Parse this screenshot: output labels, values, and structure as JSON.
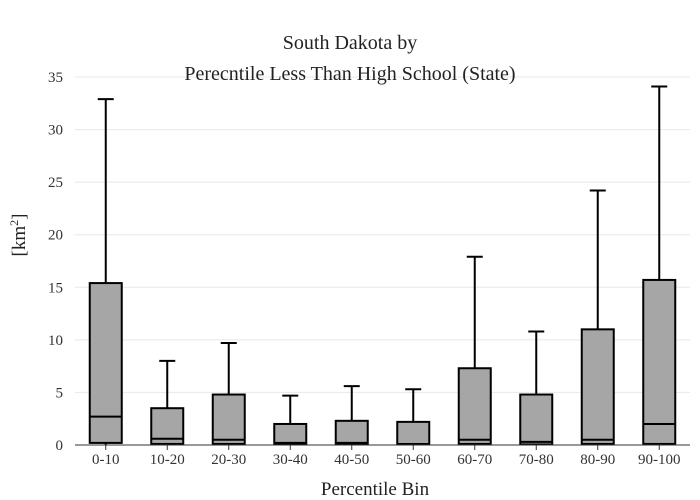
{
  "chart_data": {
    "type": "box",
    "title_line1": "South Dakota  by",
    "title_line2": "Perecntile Less Than High School (State)",
    "xlabel": "Percentile Bin",
    "ylabel_main": "[km",
    "ylabel_sup": "2",
    "ylabel_close": "]",
    "ylim": [
      0,
      35
    ],
    "yticks": [
      "0",
      "5",
      "10",
      "15",
      "20",
      "25",
      "30",
      "35"
    ],
    "grid": true,
    "box_color": "#a6a6a6",
    "line_color": "#000000",
    "categories": [
      "0-10",
      "10-20",
      "20-30",
      "30-40",
      "40-50",
      "50-60",
      "60-70",
      "70-80",
      "80-90",
      "90-100"
    ],
    "boxes": [
      {
        "min": 0.0,
        "q1": 0.2,
        "median": 2.7,
        "q3": 15.4,
        "max": 32.9
      },
      {
        "min": 0.0,
        "q1": 0.1,
        "median": 0.6,
        "q3": 3.5,
        "max": 8.0
      },
      {
        "min": 0.0,
        "q1": 0.1,
        "median": 0.5,
        "q3": 4.8,
        "max": 9.7
      },
      {
        "min": 0.0,
        "q1": 0.05,
        "median": 0.2,
        "q3": 2.0,
        "max": 4.7
      },
      {
        "min": 0.0,
        "q1": 0.05,
        "median": 0.2,
        "q3": 2.3,
        "max": 5.6
      },
      {
        "min": 0.0,
        "q1": 0.05,
        "median": 0.1,
        "q3": 2.2,
        "max": 5.3
      },
      {
        "min": 0.0,
        "q1": 0.1,
        "median": 0.5,
        "q3": 7.3,
        "max": 17.9
      },
      {
        "min": 0.0,
        "q1": 0.05,
        "median": 0.3,
        "q3": 4.8,
        "max": 10.8
      },
      {
        "min": 0.0,
        "q1": 0.1,
        "median": 0.5,
        "q3": 11.0,
        "max": 24.2
      },
      {
        "min": 0.0,
        "q1": 0.1,
        "median": 2.0,
        "q3": 15.7,
        "max": 34.1
      }
    ]
  }
}
